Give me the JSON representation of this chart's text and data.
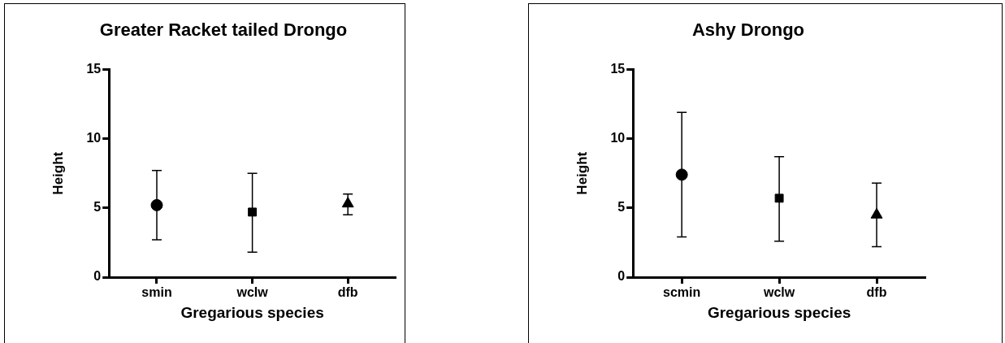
{
  "chart_data": [
    {
      "type": "scatter",
      "title": "Greater Racket tailed Drongo",
      "xlabel": "Gregarious species",
      "ylabel": "Height",
      "categories": [
        "smin",
        "wclw",
        "dfb"
      ],
      "ylim": [
        0,
        15
      ],
      "yticks": [
        0,
        5,
        10,
        15
      ],
      "grid": false,
      "legend": false,
      "series": [
        {
          "color": "#000000",
          "marker": "circle",
          "x": [
            "smin"
          ],
          "values": [
            5.2
          ],
          "errors": [
            [
              2.7,
              7.7
            ]
          ]
        },
        {
          "color": "#000000",
          "marker": "square",
          "x": [
            "wclw"
          ],
          "values": [
            4.7
          ],
          "errors": [
            [
              1.8,
              7.5
            ]
          ]
        },
        {
          "color": "#000000",
          "marker": "triangle",
          "x": [
            "dfb"
          ],
          "values": [
            5.3
          ],
          "errors": [
            [
              4.5,
              6.0
            ]
          ]
        }
      ]
    },
    {
      "type": "scatter",
      "title": "Ashy Drongo",
      "xlabel": "Gregarious species",
      "ylabel": "Height",
      "categories": [
        "scmin",
        "wclw",
        "dfb"
      ],
      "ylim": [
        0,
        15
      ],
      "yticks": [
        0,
        5,
        10,
        15
      ],
      "grid": false,
      "legend": false,
      "series": [
        {
          "color": "#000000",
          "marker": "circle",
          "x": [
            "scmin"
          ],
          "values": [
            7.4
          ],
          "errors": [
            [
              2.9,
              11.9
            ]
          ]
        },
        {
          "color": "#000000",
          "marker": "square",
          "x": [
            "wclw"
          ],
          "values": [
            5.7
          ],
          "errors": [
            [
              2.6,
              8.7
            ]
          ]
        },
        {
          "color": "#000000",
          "marker": "triangle",
          "x": [
            "dfb"
          ],
          "values": [
            4.5
          ],
          "errors": [
            [
              2.2,
              6.8
            ]
          ]
        }
      ]
    }
  ]
}
